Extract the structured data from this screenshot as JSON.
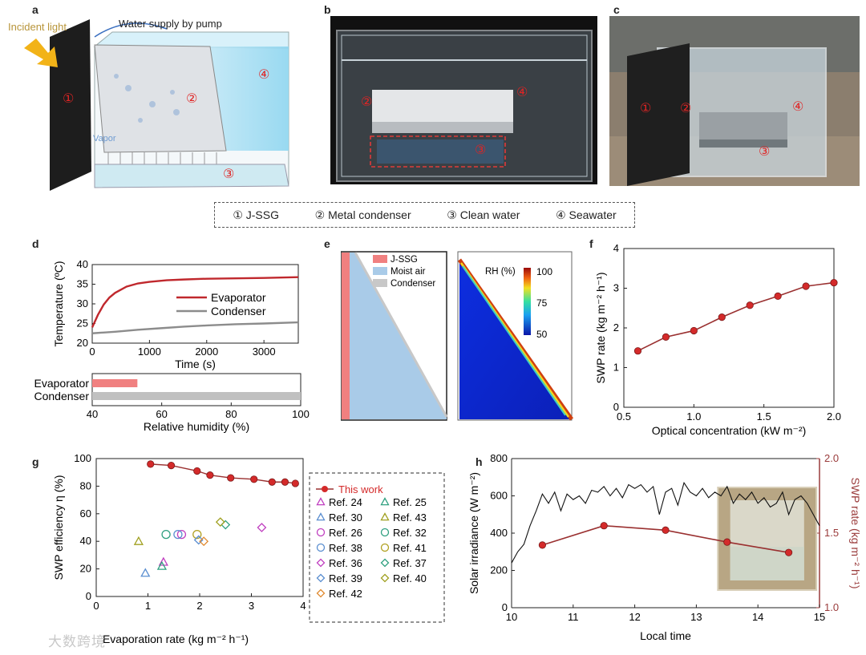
{
  "panel_letters": [
    "a",
    "b",
    "c",
    "d",
    "e",
    "f",
    "g",
    "h"
  ],
  "panel_a": {
    "incident_light": "Incident light",
    "water_supply": "Water supply by pump",
    "vapor": "Vapor",
    "markers": [
      "①",
      "②",
      "③",
      "④"
    ]
  },
  "panel_b": {
    "markers": [
      "②",
      "③",
      "④"
    ]
  },
  "panel_c": {
    "markers": [
      "①",
      "②",
      "③",
      "④"
    ]
  },
  "legend_box": {
    "items": [
      "① J-SSG",
      "② Metal condenser",
      "③ Clean water",
      "④ Seawater"
    ]
  },
  "panel_e": {
    "legend": [
      "J-SSG",
      "Moist air",
      "Condenser"
    ],
    "colorbar_title": "RH (%)",
    "colorbar_ticks": [
      "100",
      "75",
      "50"
    ],
    "legend_colors": [
      "#f08080",
      "#a9cbe8",
      "#c8c8c8"
    ]
  },
  "watermark": "大数跨境",
  "colors": {
    "red": "#c0282d",
    "gray": "#8c8c8c",
    "marker_red": "#d42a2a",
    "axis_red": "#9a3b3b"
  },
  "chart_data": [
    {
      "id": "d-top",
      "type": "line",
      "xlabel": "Time (s)",
      "ylabel": "Temperature (ºC)",
      "xlim": [
        0,
        3600
      ],
      "ylim": [
        20,
        40
      ],
      "xticks": [
        "0",
        "1000",
        "2000",
        "3000"
      ],
      "yticks": [
        "20",
        "25",
        "30",
        "35",
        "40"
      ],
      "series": [
        {
          "name": "Evaporator",
          "color": "#c0282d",
          "x": [
            0,
            100,
            200,
            300,
            400,
            600,
            800,
            1000,
            1300,
            1600,
            2000,
            2500,
            3000,
            3600
          ],
          "y": [
            24,
            27.2,
            29.8,
            31.6,
            32.8,
            34.4,
            35.2,
            35.6,
            36.0,
            36.2,
            36.4,
            36.5,
            36.6,
            36.8
          ]
        },
        {
          "name": "Condenser",
          "color": "#8c8c8c",
          "x": [
            0,
            400,
            800,
            1200,
            1600,
            2000,
            2500,
            3000,
            3600
          ],
          "y": [
            22.5,
            22.9,
            23.4,
            23.8,
            24.2,
            24.5,
            24.8,
            25.0,
            25.3
          ]
        }
      ]
    },
    {
      "id": "d-bottom",
      "type": "bar",
      "orientation": "horizontal",
      "xlabel": "Relative humidity (%)",
      "xlim": [
        40,
        100
      ],
      "xticks": [
        "40",
        "60",
        "80",
        "100"
      ],
      "categories": [
        "Evaporator",
        "Condenser"
      ],
      "values": [
        53,
        100
      ],
      "colors": [
        "#f08080",
        "#c0c0c0"
      ]
    },
    {
      "id": "f",
      "type": "line",
      "xlabel": "Optical concentration (kW m⁻²)",
      "ylabel": "SWP rate (kg m⁻² h⁻¹)",
      "xlim": [
        0.5,
        2.0
      ],
      "ylim": [
        0,
        4
      ],
      "xticks": [
        "0.5",
        "1.0",
        "1.5",
        "2.0"
      ],
      "yticks": [
        "0",
        "1",
        "2",
        "3",
        "4"
      ],
      "x": [
        0.6,
        0.8,
        1.0,
        1.2,
        1.4,
        1.6,
        1.8,
        2.0
      ],
      "y": [
        1.42,
        1.77,
        1.93,
        2.27,
        2.57,
        2.8,
        3.05,
        3.14
      ]
    },
    {
      "id": "g",
      "type": "scatter",
      "xlabel": "Evaporation rate (kg m⁻² h⁻¹)",
      "ylabel": "SWP efficiency η (%)",
      "xlim": [
        0,
        4
      ],
      "ylim": [
        0,
        100
      ],
      "xticks": [
        "0",
        "1",
        "2",
        "3",
        "4"
      ],
      "yticks": [
        "0",
        "20",
        "40",
        "60",
        "80",
        "100"
      ],
      "this_work": {
        "name": "This work",
        "color": "#d42a2a",
        "x": [
          1.05,
          1.45,
          1.95,
          2.2,
          2.6,
          3.05,
          3.4,
          3.65,
          3.85
        ],
        "y": [
          96,
          95,
          91,
          88,
          86,
          85,
          83,
          83,
          82
        ]
      },
      "refs": [
        {
          "name": "Ref. 24",
          "marker": "triangle",
          "color": "#c040c0",
          "x": 1.3,
          "y": 25
        },
        {
          "name": "Ref. 25",
          "marker": "triangle",
          "color": "#30a080",
          "x": 1.27,
          "y": 22
        },
        {
          "name": "Ref. 30",
          "marker": "triangle",
          "color": "#5a8ed0",
          "x": 0.95,
          "y": 17
        },
        {
          "name": "Ref. 43",
          "marker": "triangle",
          "color": "#a0a020",
          "x": 0.82,
          "y": 40
        },
        {
          "name": "Ref. 26",
          "marker": "circle",
          "color": "#c040c0",
          "x": 1.65,
          "y": 45
        },
        {
          "name": "Ref. 32",
          "marker": "circle",
          "color": "#30a080",
          "x": 1.35,
          "y": 45
        },
        {
          "name": "Ref. 38",
          "marker": "circle",
          "color": "#5a8ed0",
          "x": 1.58,
          "y": 45
        },
        {
          "name": "Ref. 41",
          "marker": "circle",
          "color": "#b0a020",
          "x": 1.95,
          "y": 45
        },
        {
          "name": "Ref. 36",
          "marker": "diamond",
          "color": "#c040c0",
          "x": 3.2,
          "y": 50
        },
        {
          "name": "Ref. 37",
          "marker": "diamond",
          "color": "#30a080",
          "x": 2.5,
          "y": 52
        },
        {
          "name": "Ref. 39",
          "marker": "diamond",
          "color": "#5a8ed0",
          "x": 1.98,
          "y": 41
        },
        {
          "name": "Ref. 40",
          "marker": "diamond",
          "color": "#a0a020",
          "x": 2.4,
          "y": 54
        },
        {
          "name": "Ref. 42",
          "marker": "diamond",
          "color": "#e08a30",
          "x": 2.08,
          "y": 40
        }
      ]
    },
    {
      "id": "h",
      "type": "line",
      "xlabel": "Local time",
      "ylabel_left": "Solar irradiance (W m⁻²)",
      "ylabel_right": "SWP rate (kg m⁻² h⁻¹)",
      "xlim": [
        10,
        15
      ],
      "ylim_left": [
        0,
        800
      ],
      "ylim_right": [
        1.0,
        2.0
      ],
      "xticks": [
        "10",
        "11",
        "12",
        "13",
        "14",
        "15"
      ],
      "yticks_left": [
        "0",
        "200",
        "400",
        "600",
        "800"
      ],
      "yticks_right": [
        "1.0",
        "1.5",
        "2.0"
      ],
      "irradiance": {
        "x": [
          10.0,
          10.1,
          10.2,
          10.3,
          10.4,
          10.5,
          10.6,
          10.7,
          10.8,
          10.9,
          11.0,
          11.1,
          11.2,
          11.3,
          11.4,
          11.5,
          11.6,
          11.7,
          11.8,
          11.9,
          12.0,
          12.1,
          12.2,
          12.3,
          12.4,
          12.5,
          12.6,
          12.7,
          12.8,
          12.9,
          13.0,
          13.1,
          13.2,
          13.3,
          13.4,
          13.5,
          13.6,
          13.7,
          13.8,
          13.9,
          14.0,
          14.1,
          14.2,
          14.3,
          14.4,
          14.5,
          14.6,
          14.7,
          14.8,
          14.9,
          15.0
        ],
        "y": [
          240,
          300,
          340,
          440,
          520,
          610,
          560,
          620,
          520,
          610,
          580,
          600,
          560,
          630,
          620,
          650,
          600,
          640,
          590,
          660,
          640,
          660,
          620,
          650,
          500,
          620,
          640,
          550,
          670,
          620,
          600,
          640,
          590,
          620,
          600,
          650,
          560,
          610,
          580,
          620,
          560,
          590,
          540,
          560,
          620,
          500,
          580,
          600,
          560,
          500,
          440
        ]
      },
      "swp": {
        "x": [
          10.5,
          11.5,
          12.5,
          13.5,
          14.5
        ],
        "y": [
          1.42,
          1.55,
          1.52,
          1.44,
          1.37
        ]
      }
    }
  ]
}
